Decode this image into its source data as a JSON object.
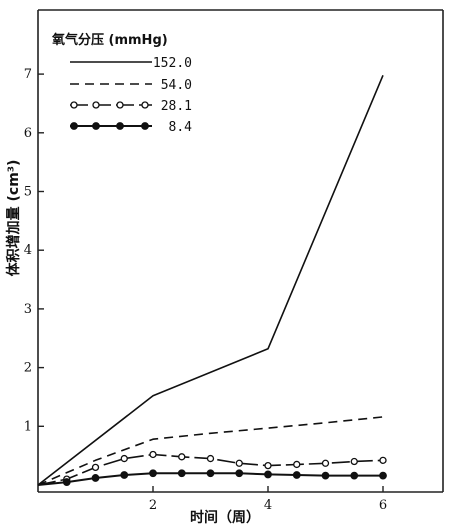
{
  "chart_data": {
    "type": "line",
    "xlabel": "时间（周）",
    "ylabel": "体积增加量 (cm³)",
    "xlim": [
      0,
      6.5
    ],
    "ylim": [
      0,
      7.75
    ],
    "x_ticks": [
      "2",
      "4",
      "6"
    ],
    "y_ticks": [
      "1",
      "2",
      "3",
      "4",
      "5",
      "6",
      "7"
    ],
    "legend": {
      "title": "氧气分压 (mmHg)",
      "placement": "top-left"
    },
    "series": [
      {
        "name": "152.0",
        "style": "solid",
        "points": [
          [
            0,
            0
          ],
          [
            2,
            1.52
          ],
          [
            4,
            2.32
          ],
          [
            6,
            6.98
          ]
        ]
      },
      {
        "name": "54.0",
        "style": "dashed",
        "points": [
          [
            0,
            0
          ],
          [
            1,
            0.42
          ],
          [
            2,
            0.78
          ],
          [
            3,
            0.88
          ],
          [
            4,
            0.97
          ],
          [
            5,
            1.06
          ],
          [
            6,
            1.16
          ]
        ]
      },
      {
        "name": "28.1",
        "style": "open-circle",
        "points": [
          [
            0,
            0
          ],
          [
            0.5,
            0.1
          ],
          [
            1,
            0.3
          ],
          [
            1.5,
            0.45
          ],
          [
            2,
            0.52
          ],
          [
            2.5,
            0.48
          ],
          [
            3,
            0.45
          ],
          [
            3.5,
            0.37
          ],
          [
            4,
            0.33
          ],
          [
            4.5,
            0.35
          ],
          [
            5,
            0.37
          ],
          [
            5.5,
            0.4
          ],
          [
            6,
            0.42
          ]
        ]
      },
      {
        "name": "8.4",
        "style": "filled-circle",
        "points": [
          [
            0,
            0
          ],
          [
            0.5,
            0.05
          ],
          [
            1,
            0.12
          ],
          [
            1.5,
            0.17
          ],
          [
            2,
            0.2
          ],
          [
            2.5,
            0.2
          ],
          [
            3,
            0.2
          ],
          [
            3.5,
            0.2
          ],
          [
            4,
            0.18
          ],
          [
            4.5,
            0.17
          ],
          [
            5,
            0.16
          ],
          [
            5.5,
            0.16
          ],
          [
            6,
            0.16
          ]
        ]
      }
    ]
  }
}
